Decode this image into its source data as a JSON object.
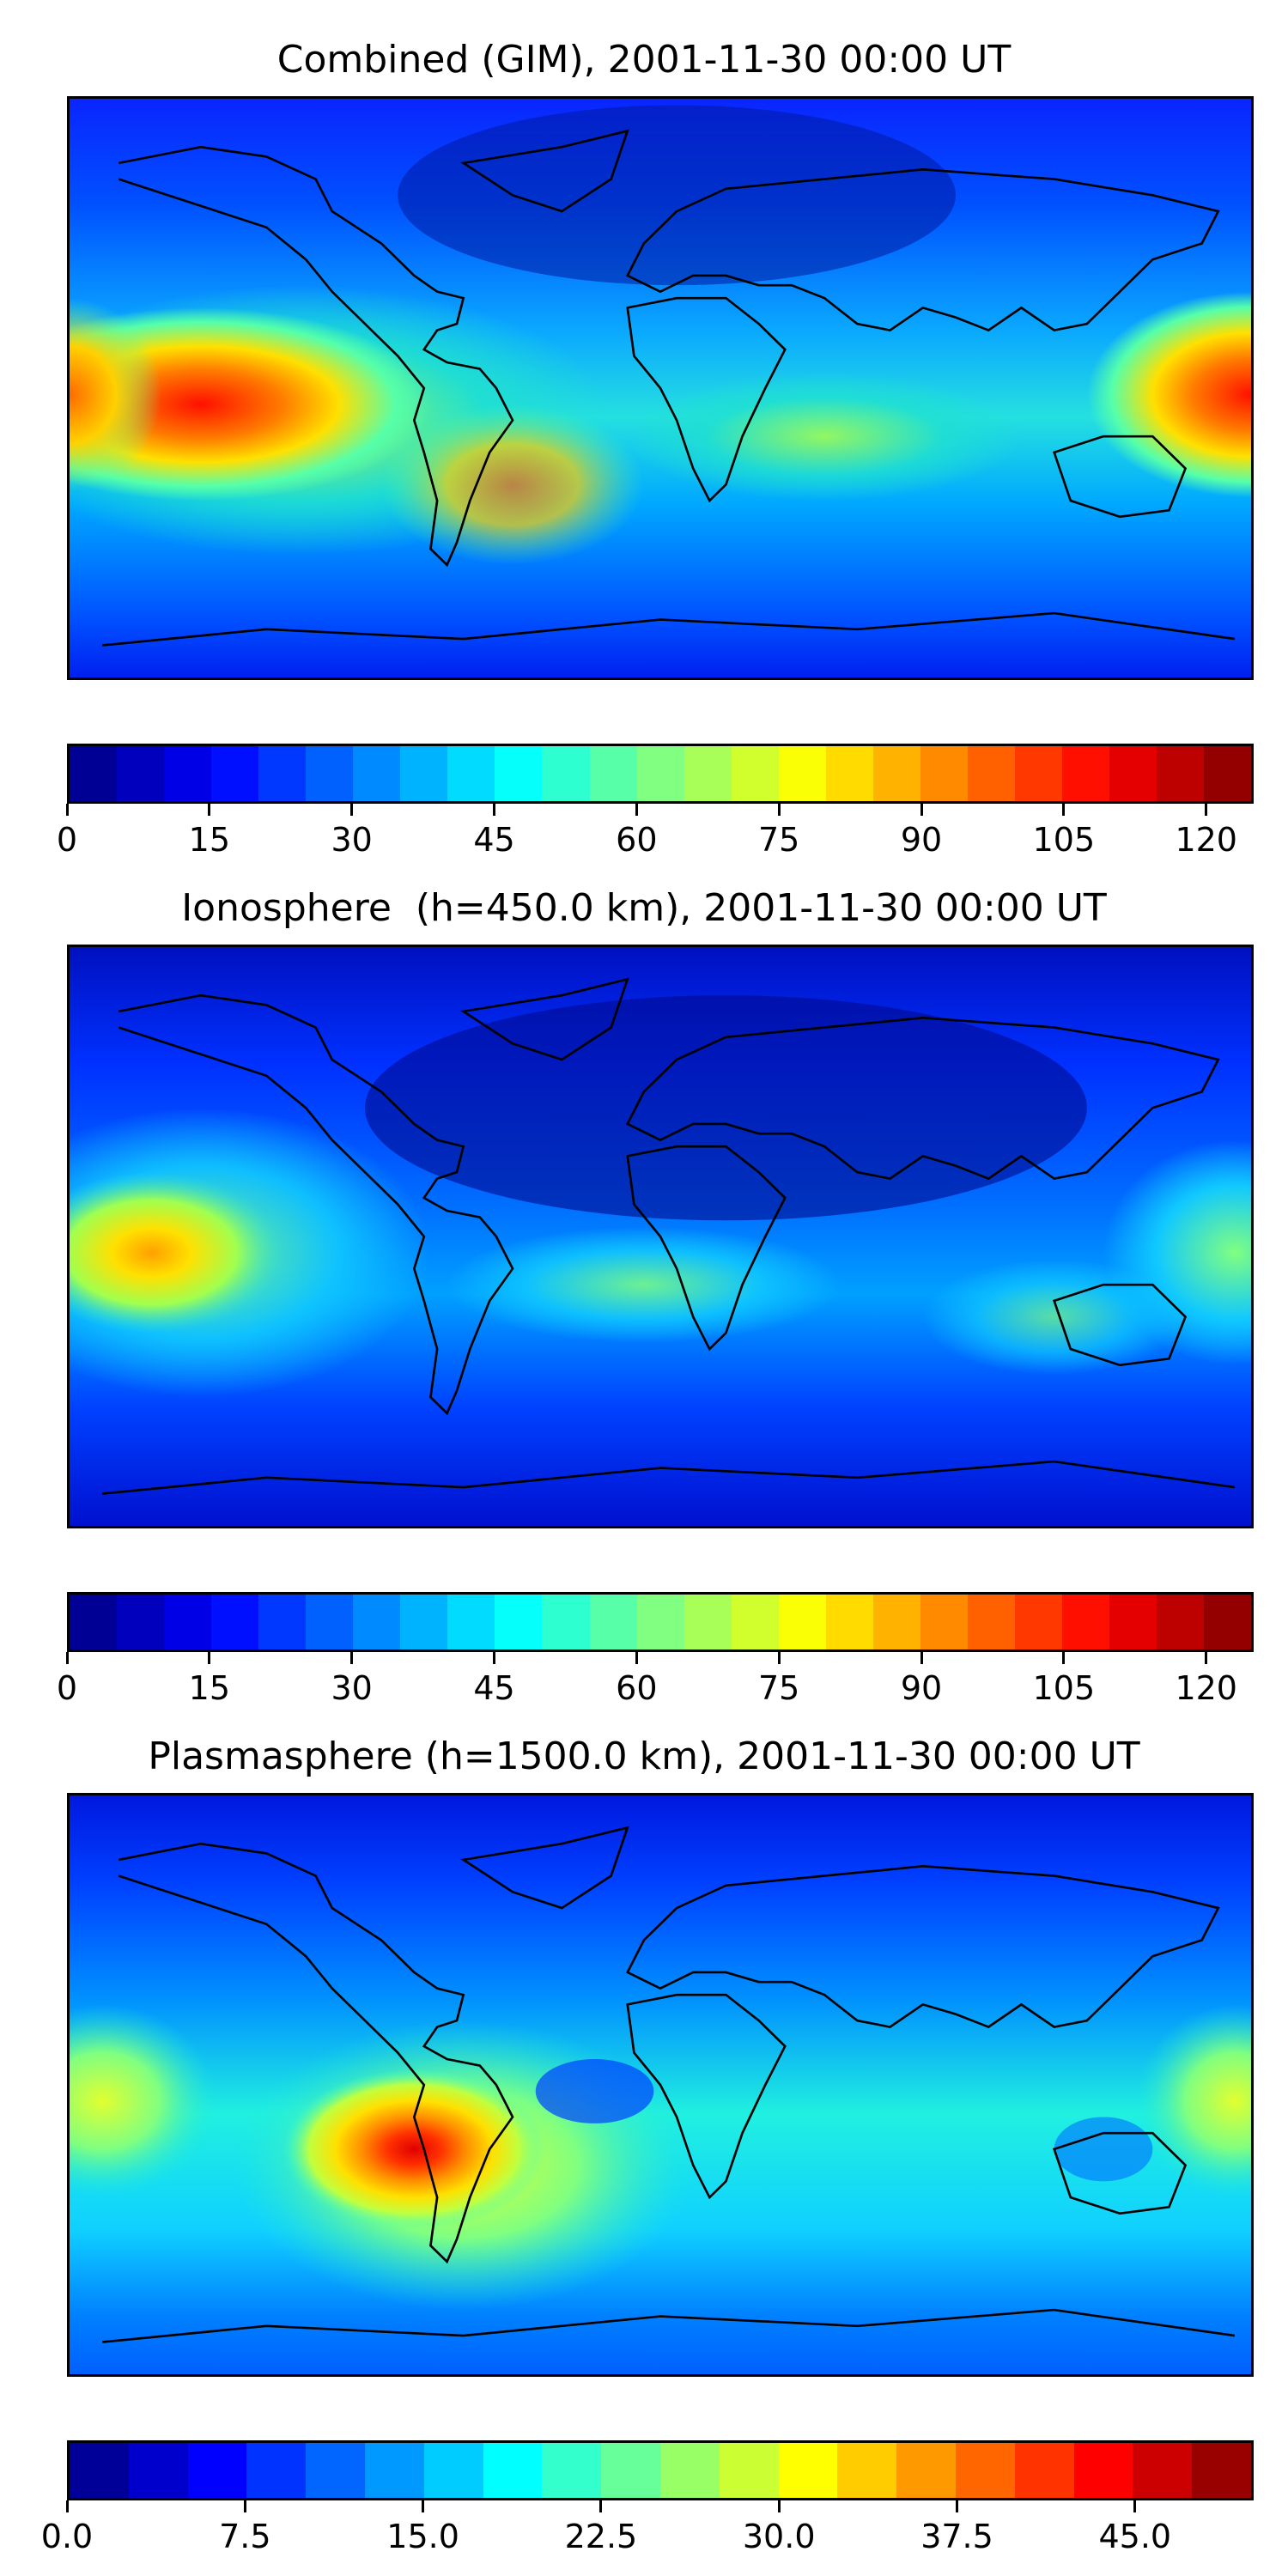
{
  "palette_name": "jet",
  "coastline_color": "#000000",
  "panels": [
    {
      "title": "Combined (GIM), 2001-11-30 00:00 UT",
      "colorbar": {
        "min": 0,
        "max": 125,
        "levels": 25,
        "ticks": [
          "0",
          "15",
          "30",
          "45",
          "60",
          "75",
          "90",
          "105",
          "120"
        ],
        "tick_values": [
          0,
          15,
          30,
          45,
          60,
          75,
          90,
          105,
          120
        ]
      },
      "features": [
        {
          "lon": -150,
          "lat": 5,
          "value": 1.0,
          "spread_lon": 55,
          "spread_lat": 16
        },
        {
          "lon": -110,
          "lat": -5,
          "value": 0.55,
          "spread_lon": 45,
          "spread_lat": 20
        },
        {
          "lon": 175,
          "lat": 5,
          "value": 0.85,
          "spread_lon": 35,
          "spread_lat": 18
        },
        {
          "lon": -40,
          "lat": -10,
          "value": 0.45,
          "spread_lon": 40,
          "spread_lat": 18
        },
        {
          "lon": 60,
          "lat": -15,
          "value": 0.3,
          "spread_lon": 60,
          "spread_lat": 20
        },
        {
          "lon": 140,
          "lat": -15,
          "value": 0.35,
          "spread_lon": 30,
          "spread_lat": 20
        }
      ]
    },
    {
      "title": "Ionosphere  (h=450.0 km), 2001-11-30 00:00 UT",
      "colorbar": {
        "min": 0,
        "max": 125,
        "levels": 25,
        "ticks": [
          "0",
          "15",
          "30",
          "45",
          "60",
          "75",
          "90",
          "105",
          "120"
        ],
        "tick_values": [
          0,
          15,
          30,
          45,
          60,
          75,
          90,
          105,
          120
        ]
      },
      "features": [
        {
          "lon": -150,
          "lat": 5,
          "value": 0.72,
          "spread_lon": 45,
          "spread_lat": 16
        },
        {
          "lon": -120,
          "lat": -10,
          "value": 0.4,
          "spread_lon": 45,
          "spread_lat": 18
        },
        {
          "lon": 175,
          "lat": 0,
          "value": 0.55,
          "spread_lon": 35,
          "spread_lat": 20
        },
        {
          "lon": -20,
          "lat": -10,
          "value": 0.38,
          "spread_lon": 40,
          "spread_lat": 14
        },
        {
          "lon": 150,
          "lat": -25,
          "value": 0.35,
          "spread_lon": 30,
          "spread_lat": 15
        }
      ]
    },
    {
      "title": "Plasmasphere (h=1500.0 km), 2001-11-30 00:00 UT",
      "colorbar": {
        "min": 0,
        "max": 50,
        "levels": 20,
        "ticks": [
          "0.0",
          "7.5",
          "15.0",
          "22.5",
          "30.0",
          "37.5",
          "45.0"
        ],
        "tick_values": [
          0,
          7.5,
          15,
          22.5,
          30,
          37.5,
          45
        ]
      },
      "features": [
        {
          "lon": -70,
          "lat": -15,
          "value": 1.0,
          "spread_lon": 22,
          "spread_lat": 12
        },
        {
          "lon": -95,
          "lat": -10,
          "value": 0.55,
          "spread_lon": 45,
          "spread_lat": 25
        },
        {
          "lon": -170,
          "lat": 0,
          "value": 0.45,
          "spread_lon": 40,
          "spread_lat": 25
        },
        {
          "lon": 175,
          "lat": 0,
          "value": 0.45,
          "spread_lon": 30,
          "spread_lat": 25
        },
        {
          "lon": 30,
          "lat": -20,
          "value": 0.35,
          "spread_lon": 60,
          "spread_lat": 25
        },
        {
          "lon": 100,
          "lat": -15,
          "value": 0.3,
          "spread_lon": 50,
          "spread_lat": 25
        }
      ]
    }
  ]
}
